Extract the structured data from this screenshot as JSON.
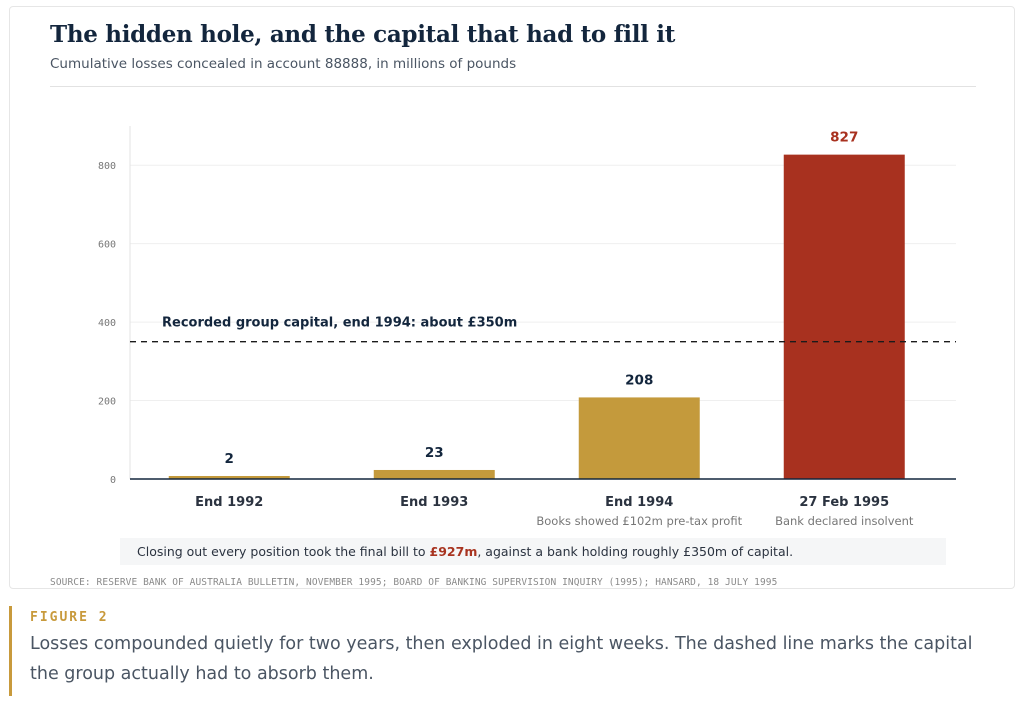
{
  "header": {
    "title": "The hidden hole, and the capital that had to fill it",
    "subtitle": "Cumulative losses concealed in account 88888, in millions of pounds"
  },
  "chart_data": {
    "type": "bar",
    "categories": [
      "End 1992",
      "End 1993",
      "End 1994",
      "27 Feb 1995"
    ],
    "values": [
      2,
      23,
      208,
      827
    ],
    "category_notes": [
      "",
      "",
      "Books showed £102m pre-tax profit",
      "Bank declared insolvent"
    ],
    "bar_colors": [
      "#c49a3c",
      "#c49a3c",
      "#c49a3c",
      "#a8311f"
    ],
    "label_colors": [
      "#13263d",
      "#13263d",
      "#13263d",
      "#a8311f"
    ],
    "ylim": [
      0,
      900
    ],
    "yticks": [
      0,
      200,
      400,
      600,
      800
    ],
    "grid": true,
    "reference_line": {
      "value": 350,
      "label": "Recorded group capital, end 1994: about £350m"
    }
  },
  "callout": {
    "prefix": "Closing out every position took the final bill to ",
    "highlight": "£927m",
    "suffix": ", against a bank holding roughly £350m of capital."
  },
  "source": "SOURCE: RESERVE BANK OF AUSTRALIA BULLETIN, NOVEMBER 1995; BOARD OF BANKING SUPERVISION INQUIRY (1995); HANSARD, 18 JULY 1995",
  "figure": {
    "label": "FIGURE 2",
    "caption": "Losses compounded quietly for two years, then exploded in eight weeks. The dashed line marks the capital the group actually had to absorb them."
  },
  "colors": {
    "accent_gold": "#c89a3c",
    "accent_red": "#a83420",
    "title": "#13263d"
  }
}
